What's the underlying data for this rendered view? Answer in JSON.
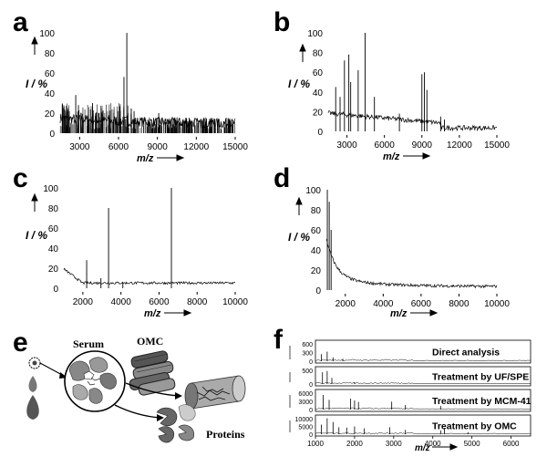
{
  "panels": {
    "a": {
      "letter": "a",
      "ylabel": "I / %",
      "xlabel": "m/z",
      "yticks": [
        "0",
        "20",
        "40",
        "60",
        "80",
        "100"
      ],
      "xticks": [
        "3000",
        "6000",
        "9000",
        "12000",
        "15000"
      ],
      "chart_data": {
        "type": "line",
        "xlim": [
          1500,
          15000
        ],
        "ylim": [
          0,
          100
        ],
        "xticks": [
          3000,
          6000,
          9000,
          12000,
          15000
        ],
        "noise": "dense",
        "peaks": [
          [
            2700,
            38
          ],
          [
            4000,
            30
          ],
          [
            6420,
            56
          ],
          [
            6640,
            100
          ],
          [
            7200,
            22
          ],
          [
            9100,
            20
          ]
        ]
      }
    },
    "b": {
      "letter": "b",
      "ylabel": "I / %",
      "xlabel": "m/z",
      "yticks": [
        "0",
        "20",
        "40",
        "60",
        "80",
        "100"
      ],
      "xticks": [
        "3000",
        "6000",
        "9000",
        "12000",
        "15000"
      ],
      "chart_data": {
        "type": "line",
        "xlim": [
          1500,
          15000
        ],
        "ylim": [
          0,
          100
        ],
        "xticks": [
          3000,
          6000,
          9000,
          12000,
          15000
        ],
        "noise": "light",
        "peaks": [
          [
            2100,
            45
          ],
          [
            2450,
            35
          ],
          [
            2800,
            72
          ],
          [
            3150,
            78
          ],
          [
            3300,
            50
          ],
          [
            3900,
            62
          ],
          [
            4450,
            100
          ],
          [
            5200,
            35
          ],
          [
            7200,
            18
          ],
          [
            9000,
            58
          ],
          [
            9200,
            60
          ],
          [
            9400,
            42
          ],
          [
            10500,
            15
          ],
          [
            10800,
            12
          ]
        ]
      }
    },
    "c": {
      "letter": "c",
      "ylabel": "I / %",
      "xlabel": "m/z",
      "yticks": [
        "0",
        "20",
        "40",
        "60",
        "80",
        "100"
      ],
      "xticks": [
        "2000",
        "4000",
        "6000",
        "8000",
        "10000"
      ],
      "chart_data": {
        "type": "line",
        "xlim": [
          1000,
          10000
        ],
        "ylim": [
          0,
          100
        ],
        "xticks": [
          2000,
          4000,
          6000,
          8000,
          10000
        ],
        "noise": "light",
        "peaks": [
          [
            2200,
            28
          ],
          [
            2950,
            10
          ],
          [
            3350,
            80
          ],
          [
            4100,
            6
          ],
          [
            6650,
            100
          ]
        ]
      }
    },
    "d": {
      "letter": "d",
      "ylabel": "I / %",
      "xlabel": "m/z",
      "yticks": [
        "0",
        "20",
        "40",
        "60",
        "80",
        "100"
      ],
      "xticks": [
        "2000",
        "4000",
        "6000",
        "8000",
        "10000"
      ],
      "chart_data": {
        "type": "line",
        "xlim": [
          1000,
          10000
        ],
        "ylim": [
          0,
          100
        ],
        "xticks": [
          2000,
          4000,
          6000,
          8000,
          10000
        ],
        "noise": "decay",
        "peaks": [
          [
            1050,
            100
          ],
          [
            1150,
            88
          ],
          [
            1250,
            60
          ]
        ]
      }
    },
    "e": {
      "letter": "e",
      "labels": {
        "serum": "Serum",
        "omc": "OMC",
        "proteins": "Proteins"
      }
    },
    "f": {
      "letter": "f",
      "xlabel": "m/z",
      "xticks": [
        "1000",
        "2000",
        "3000",
        "4000",
        "5000",
        "6000"
      ],
      "strips": [
        {
          "title": "Direct analysis",
          "yticks": [
            "600",
            "300",
            "0"
          ]
        },
        {
          "title": "Treatment by UF/SPE",
          "yticks": [
            "500",
            "0"
          ]
        },
        {
          "title": "Treatment by MCM-41",
          "yticks": [
            "6000",
            "3000",
            "0"
          ]
        },
        {
          "title": "Treatment by OMC",
          "yticks": [
            "10000",
            "5000",
            "0"
          ]
        }
      ],
      "chart_data": [
        {
          "type": "line",
          "name": "Direct analysis",
          "xlim": [
            1000,
            6500
          ],
          "ylim": [
            0,
            600
          ],
          "peaks": [
            [
              1150,
              220
            ],
            [
              1300,
              300
            ],
            [
              1450,
              120
            ],
            [
              1700,
              80
            ]
          ]
        },
        {
          "type": "line",
          "name": "Treatment by UF/SPE",
          "xlim": [
            1000,
            6500
          ],
          "ylim": [
            0,
            500
          ],
          "peaks": [
            [
              1180,
              380
            ],
            [
              1300,
              420
            ],
            [
              1420,
              200
            ],
            [
              2000,
              60
            ]
          ]
        },
        {
          "type": "line",
          "name": "Treatment by MCM-41",
          "xlim": [
            1000,
            6500
          ],
          "ylim": [
            0,
            6000
          ],
          "peaks": [
            [
              1200,
              4800
            ],
            [
              1350,
              3200
            ],
            [
              1900,
              3600
            ],
            [
              2000,
              3000
            ],
            [
              2100,
              2500
            ],
            [
              2950,
              2600
            ],
            [
              3300,
              1500
            ],
            [
              4200,
              1200
            ]
          ]
        },
        {
          "type": "line",
          "name": "Treatment by OMC",
          "xlim": [
            1000,
            6500
          ],
          "ylim": [
            0,
            10000
          ],
          "peaks": [
            [
              1150,
              5500
            ],
            [
              1300,
              9200
            ],
            [
              1450,
              7000
            ],
            [
              1600,
              4000
            ],
            [
              1800,
              3800
            ],
            [
              2000,
              4500
            ],
            [
              2250,
              3400
            ],
            [
              2900,
              4000
            ],
            [
              3300,
              2500
            ],
            [
              4200,
              2200
            ],
            [
              4300,
              3600
            ],
            [
              4900,
              1200
            ]
          ]
        }
      ]
    }
  }
}
